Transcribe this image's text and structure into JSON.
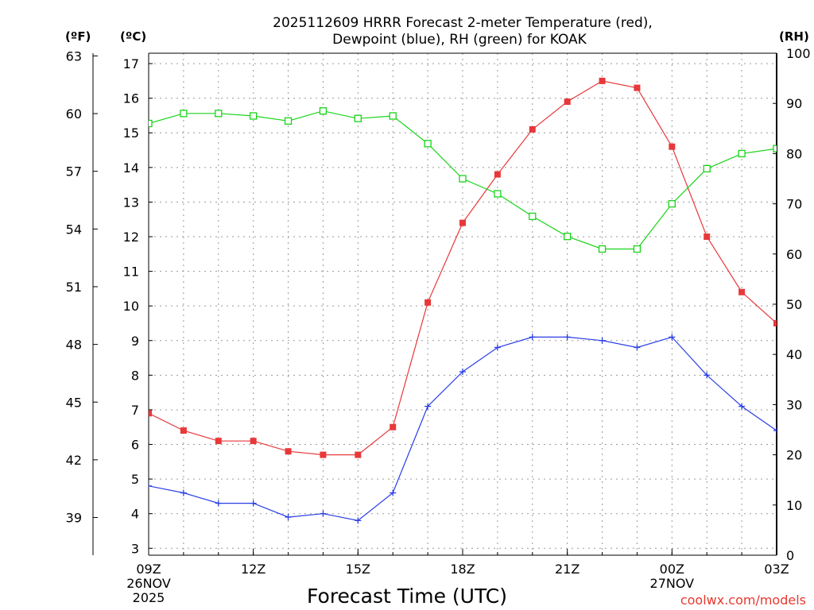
{
  "chart_data": {
    "type": "line",
    "title_line1": "2025112609 HRRR Forecast 2-meter Temperature (red),",
    "title_line2": "Dewpoint (blue), RH (green) for KOAK",
    "xlabel": "Forecast Time (UTC)",
    "credit": "coolwx.com/models",
    "units": {
      "left_f": "(ºF)",
      "left_c": "(ºC)",
      "right": "(RH)"
    },
    "x": [
      "09Z",
      "10Z",
      "11Z",
      "12Z",
      "13Z",
      "14Z",
      "15Z",
      "16Z",
      "17Z",
      "18Z",
      "19Z",
      "20Z",
      "21Z",
      "22Z",
      "23Z",
      "00Z",
      "01Z",
      "02Z",
      "03Z"
    ],
    "x_ticks": [
      {
        "index": 0,
        "label": "09Z",
        "date": "26NOV",
        "year": "2025"
      },
      {
        "index": 3,
        "label": "12Z"
      },
      {
        "index": 6,
        "label": "15Z"
      },
      {
        "index": 9,
        "label": "18Z"
      },
      {
        "index": 12,
        "label": "21Z"
      },
      {
        "index": 15,
        "label": "00Z",
        "date": "27NOV"
      },
      {
        "index": 18,
        "label": "03Z"
      }
    ],
    "ylim_c": [
      2.8,
      17.3
    ],
    "y_ticks_c": [
      3,
      4,
      5,
      6,
      7,
      8,
      9,
      10,
      11,
      12,
      13,
      14,
      15,
      16,
      17
    ],
    "y_ticks_f": [
      39,
      42,
      45,
      48,
      51,
      54,
      57,
      60,
      63
    ],
    "ylim_rh": [
      0,
      100
    ],
    "y_ticks_rh": [
      0,
      10,
      20,
      30,
      40,
      50,
      60,
      70,
      80,
      90,
      100
    ],
    "series": [
      {
        "name": "Temperature",
        "axis": "c",
        "color": "#e8383a",
        "marker": "filled-square",
        "values": [
          6.9,
          6.4,
          6.1,
          6.1,
          5.8,
          5.7,
          5.7,
          6.5,
          10.1,
          12.4,
          13.8,
          15.1,
          15.9,
          16.5,
          16.3,
          14.6,
          12.0,
          10.4,
          9.5
        ]
      },
      {
        "name": "Dewpoint",
        "axis": "c",
        "color": "#2b3fe6",
        "marker": "plus",
        "values": [
          4.8,
          4.6,
          4.3,
          4.3,
          3.9,
          4.0,
          3.8,
          4.6,
          7.1,
          8.1,
          8.8,
          9.1,
          9.1,
          9.0,
          8.8,
          9.1,
          8.0,
          7.1,
          6.4
        ]
      },
      {
        "name": "RH",
        "axis": "rh",
        "color": "#19d419",
        "marker": "open-square",
        "values": [
          86,
          88,
          88,
          87.5,
          86.5,
          88.5,
          87,
          87.5,
          82,
          75,
          72,
          67.5,
          63.5,
          61,
          61,
          70,
          77,
          80,
          81
        ]
      }
    ]
  }
}
